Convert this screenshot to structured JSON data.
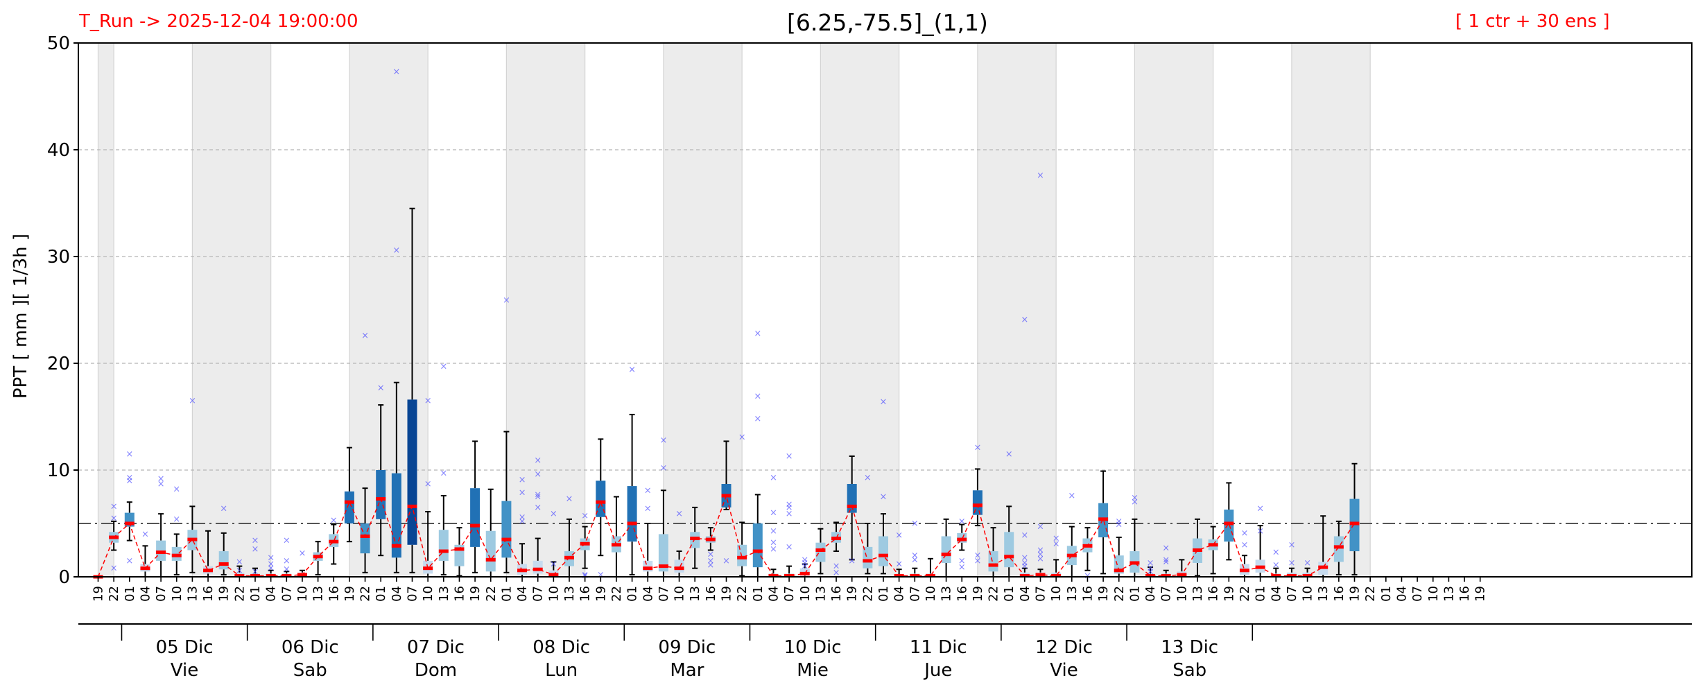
{
  "header": {
    "run_label": "T_Run -> 2025-12-04  19:00:00",
    "title": "[6.25,-75.5]_(1,1)",
    "ensemble_label": "[ 1 ctr + 30 ens ]"
  },
  "colors": {
    "run_label": "#ff0000",
    "median_marker": "#ff0000",
    "median_line": "#ff0000",
    "outliers": "#4d4dff",
    "threshold_line": "#555555",
    "night_shading": "#ececec",
    "box_shades": [
      "#c6dbef",
      "#9ecae1",
      "#4292c6",
      "#2171b5",
      "#084594"
    ]
  },
  "chart_data": {
    "type": "box",
    "ylabel": "PPT  [ mm ][ 1/3h ]",
    "ylim": [
      0,
      50
    ],
    "yticks": [
      "0",
      "10",
      "20",
      "30",
      "40",
      "50"
    ],
    "threshold": 5,
    "grid": "horizontal dashed",
    "hour_labels": [
      "19",
      "22",
      "01",
      "04",
      "07",
      "10",
      "13",
      "16",
      "19",
      "22",
      "01",
      "04",
      "07",
      "10",
      "13",
      "16",
      "19",
      "22",
      "01",
      "04",
      "07",
      "10",
      "13",
      "16",
      "19",
      "22",
      "01",
      "04",
      "07",
      "10",
      "13",
      "16",
      "19",
      "22",
      "01",
      "04",
      "07",
      "10",
      "13",
      "16",
      "19",
      "22",
      "01",
      "04",
      "07",
      "10",
      "13",
      "16",
      "19",
      "22",
      "01",
      "04",
      "07",
      "10",
      "13",
      "16",
      "19",
      "22",
      "01",
      "04",
      "07",
      "10",
      "13",
      "16",
      "19",
      "22",
      "01",
      "04",
      "07",
      "10",
      "13",
      "16",
      "19",
      "22",
      "01",
      "04",
      "07",
      "10",
      "13",
      "16",
      "19",
      "22",
      "01",
      "04",
      "07",
      "10",
      "13",
      "16",
      "19"
    ],
    "days": [
      {
        "date": "05 Dic",
        "weekday": "Vie"
      },
      {
        "date": "06 Dic",
        "weekday": "Sab"
      },
      {
        "date": "07 Dic",
        "weekday": "Dom"
      },
      {
        "date": "08 Dic",
        "weekday": "Lun"
      },
      {
        "date": "09 Dic",
        "weekday": "Mar"
      },
      {
        "date": "10 Dic",
        "weekday": "Mie"
      },
      {
        "date": "11 Dic",
        "weekday": "Jue"
      },
      {
        "date": "12 Dic",
        "weekday": "Vie"
      },
      {
        "date": "13 Dic",
        "weekday": "Sab"
      }
    ],
    "night_spans": [
      [
        0,
        1
      ],
      [
        6,
        11
      ],
      [
        16,
        21
      ],
      [
        26,
        31
      ],
      [
        36,
        41
      ],
      [
        46,
        51
      ],
      [
        56,
        61
      ],
      [
        66,
        71
      ],
      [
        76,
        81
      ]
    ],
    "boxes": [
      {
        "lo": 0,
        "q1": 0,
        "med": 0,
        "q3": 0,
        "hi": 0,
        "out": []
      },
      {
        "lo": 2.5,
        "q1": 3.2,
        "med": 3.7,
        "q3": 4.2,
        "hi": 5.2,
        "out": [
          6.6,
          0.8,
          5.5
        ]
      },
      {
        "lo": 3.4,
        "q1": 4.7,
        "med": 5.0,
        "q3": 6.0,
        "hi": 7.0,
        "out": [
          11.5,
          9.3,
          9.0,
          1.5
        ]
      },
      {
        "lo": 0,
        "q1": 0.5,
        "med": 0.8,
        "q3": 1.2,
        "hi": 2.9,
        "out": [
          4.0
        ]
      },
      {
        "lo": 0,
        "q1": 1.5,
        "med": 2.3,
        "q3": 3.4,
        "hi": 5.9,
        "out": [
          9.2,
          8.7
        ]
      },
      {
        "lo": 0.2,
        "q1": 1.5,
        "med": 2.0,
        "q3": 2.8,
        "hi": 4.0,
        "out": [
          8.2,
          5.4
        ]
      },
      {
        "lo": 0.4,
        "q1": 2.5,
        "med": 3.5,
        "q3": 4.4,
        "hi": 6.6,
        "out": [
          16.5
        ]
      },
      {
        "lo": 0,
        "q1": 0.3,
        "med": 0.6,
        "q3": 1.0,
        "hi": 4.3,
        "out": []
      },
      {
        "lo": 0.2,
        "q1": 0.7,
        "med": 1.2,
        "q3": 2.4,
        "hi": 4.1,
        "out": [
          6.4
        ]
      },
      {
        "lo": 0,
        "q1": 0,
        "med": 0.1,
        "q3": 0.4,
        "hi": 1.0,
        "out": [
          1.4,
          0.6
        ]
      },
      {
        "lo": 0,
        "q1": 0,
        "med": 0.1,
        "q3": 0.3,
        "hi": 0.8,
        "out": [
          3.4,
          2.6,
          0.5
        ]
      },
      {
        "lo": 0,
        "q1": 0,
        "med": 0.1,
        "q3": 0.3,
        "hi": 0.6,
        "out": [
          1.8,
          1.2,
          0.8
        ]
      },
      {
        "lo": 0,
        "q1": 0,
        "med": 0.1,
        "q3": 0.3,
        "hi": 0.5,
        "out": [
          3.4,
          1.5,
          0.7
        ]
      },
      {
        "lo": 0,
        "q1": 0.1,
        "med": 0.2,
        "q3": 0.4,
        "hi": 0.6,
        "out": [
          2.2
        ]
      },
      {
        "lo": 0.2,
        "q1": 1.5,
        "med": 1.9,
        "q3": 2.3,
        "hi": 3.3,
        "out": []
      },
      {
        "lo": 1.2,
        "q1": 2.8,
        "med": 3.3,
        "q3": 4.0,
        "hi": 4.9,
        "out": [
          5.3
        ]
      },
      {
        "lo": 3.3,
        "q1": 5.0,
        "med": 7.0,
        "q3": 8.0,
        "hi": 12.1,
        "out": []
      },
      {
        "lo": 0.4,
        "q1": 2.2,
        "med": 3.8,
        "q3": 5.0,
        "hi": 8.3,
        "out": [
          22.6
        ]
      },
      {
        "lo": 2.0,
        "q1": 5.4,
        "med": 7.3,
        "q3": 10.0,
        "hi": 16.1,
        "out": [
          17.7
        ]
      },
      {
        "lo": 0.4,
        "q1": 1.8,
        "med": 2.9,
        "q3": 9.7,
        "hi": 18.2,
        "out": [
          30.6,
          47.3
        ]
      },
      {
        "lo": 0.4,
        "q1": 3.0,
        "med": 6.6,
        "q3": 16.6,
        "hi": 34.5,
        "out": []
      },
      {
        "lo": 0,
        "q1": 0.3,
        "med": 0.8,
        "q3": 1.5,
        "hi": 6.1,
        "out": [
          16.5,
          8.7
        ]
      },
      {
        "lo": 0.2,
        "q1": 1.5,
        "med": 2.4,
        "q3": 4.4,
        "hi": 7.6,
        "out": [
          19.7,
          9.7
        ]
      },
      {
        "lo": 0.1,
        "q1": 1.0,
        "med": 2.6,
        "q3": 3.0,
        "hi": 4.6,
        "out": []
      },
      {
        "lo": 0.4,
        "q1": 2.8,
        "med": 4.8,
        "q3": 8.3,
        "hi": 12.7,
        "out": []
      },
      {
        "lo": 0,
        "q1": 0.5,
        "med": 1.6,
        "q3": 4.3,
        "hi": 8.2,
        "out": []
      },
      {
        "lo": 0.4,
        "q1": 1.8,
        "med": 3.5,
        "q3": 7.1,
        "hi": 13.6,
        "out": [
          25.9
        ]
      },
      {
        "lo": 0,
        "q1": 0.2,
        "med": 0.6,
        "q3": 1.2,
        "hi": 3.1,
        "out": [
          9.1,
          7.9,
          5.6,
          5.2
        ]
      },
      {
        "lo": 0,
        "q1": 0.3,
        "med": 0.7,
        "q3": 1.5,
        "hi": 3.6,
        "out": [
          10.9,
          9.6,
          7.7,
          7.5,
          6.5
        ]
      },
      {
        "lo": 0,
        "q1": 0.1,
        "med": 0.2,
        "q3": 0.6,
        "hi": 1.4,
        "out": [
          5.9,
          1.2
        ]
      },
      {
        "lo": 0,
        "q1": 1.0,
        "med": 1.8,
        "q3": 2.4,
        "hi": 5.4,
        "out": [
          7.3
        ]
      },
      {
        "lo": 0.8,
        "q1": 2.5,
        "med": 3.1,
        "q3": 3.6,
        "hi": 4.7,
        "out": [
          5.7,
          0.2,
          0.1
        ]
      },
      {
        "lo": 2.0,
        "q1": 5.6,
        "med": 7.0,
        "q3": 9.0,
        "hi": 12.9,
        "out": [
          0.2
        ]
      },
      {
        "lo": 0,
        "q1": 2.3,
        "med": 3.0,
        "q3": 3.8,
        "hi": 7.5,
        "out": []
      },
      {
        "lo": 0.2,
        "q1": 3.3,
        "med": 5.0,
        "q3": 8.5,
        "hi": 15.2,
        "out": [
          19.4
        ]
      },
      {
        "lo": 0,
        "q1": 0.5,
        "med": 0.8,
        "q3": 1.5,
        "hi": 5.0,
        "out": [
          8.1,
          6.4
        ]
      },
      {
        "lo": 0,
        "q1": 0.5,
        "med": 1.0,
        "q3": 4.0,
        "hi": 8.1,
        "out": [
          12.8,
          10.2
        ]
      },
      {
        "lo": 0,
        "q1": 0.4,
        "med": 0.8,
        "q3": 1.6,
        "hi": 2.4,
        "out": [
          5.9
        ]
      },
      {
        "lo": 0.8,
        "q1": 2.7,
        "med": 3.6,
        "q3": 4.2,
        "hi": 6.5,
        "out": []
      },
      {
        "lo": 2.5,
        "q1": 3.2,
        "med": 3.5,
        "q3": 3.8,
        "hi": 4.6,
        "out": [
          1.1,
          1.5,
          2.1
        ]
      },
      {
        "lo": 6.3,
        "q1": 6.5,
        "med": 7.6,
        "q3": 8.7,
        "hi": 12.7,
        "out": [
          1.5
        ]
      },
      {
        "lo": 0.1,
        "q1": 1.0,
        "med": 1.8,
        "q3": 3.0,
        "hi": 5.1,
        "out": [
          13.1
        ]
      },
      {
        "lo": 0,
        "q1": 0.9,
        "med": 2.4,
        "q3": 5.0,
        "hi": 7.7,
        "out": [
          22.8,
          16.9,
          14.8
        ]
      },
      {
        "lo": 0,
        "q1": 0,
        "med": 0.1,
        "q3": 0.3,
        "hi": 0.7,
        "out": [
          9.3,
          6.0,
          4.3,
          3.2,
          2.6
        ]
      },
      {
        "lo": 0,
        "q1": 0,
        "med": 0.1,
        "q3": 0.3,
        "hi": 1.0,
        "out": [
          11.3,
          6.8,
          6.5,
          5.9,
          2.8
        ]
      },
      {
        "lo": 0,
        "q1": 0.1,
        "med": 0.3,
        "q3": 0.8,
        "hi": 1.2,
        "out": [
          1.6,
          1.3,
          1.0
        ]
      },
      {
        "lo": 0.3,
        "q1": 1.4,
        "med": 2.5,
        "q3": 3.2,
        "hi": 4.5,
        "out": []
      },
      {
        "lo": 2.4,
        "q1": 3.2,
        "med": 3.6,
        "q3": 4.2,
        "hi": 5.1,
        "out": [
          1.0,
          0.4
        ]
      },
      {
        "lo": 1.6,
        "q1": 6.0,
        "med": 6.6,
        "q3": 8.7,
        "hi": 11.3,
        "out": [
          1.5
        ]
      },
      {
        "lo": 0.3,
        "q1": 0.8,
        "med": 1.5,
        "q3": 2.8,
        "hi": 5.0,
        "out": [
          9.3
        ]
      },
      {
        "lo": 0.3,
        "q1": 1.0,
        "med": 2.0,
        "q3": 3.8,
        "hi": 5.9,
        "out": [
          16.4,
          7.5
        ]
      },
      {
        "lo": 0,
        "q1": 0,
        "med": 0.1,
        "q3": 0.2,
        "hi": 0.7,
        "out": [
          3.9,
          1.2
        ]
      },
      {
        "lo": 0,
        "q1": 0,
        "med": 0.1,
        "q3": 0.3,
        "hi": 0.8,
        "out": [
          5.0,
          2.0,
          1.6
        ]
      },
      {
        "lo": 0,
        "q1": 0,
        "med": 0.1,
        "q3": 0.3,
        "hi": 1.7,
        "out": []
      },
      {
        "lo": 0,
        "q1": 1.3,
        "med": 2.1,
        "q3": 3.8,
        "hi": 5.4,
        "out": []
      },
      {
        "lo": 2.5,
        "q1": 3.2,
        "med": 3.5,
        "q3": 4.1,
        "hi": 4.9,
        "out": [
          1.5,
          0.9,
          5.2
        ]
      },
      {
        "lo": 4.8,
        "q1": 5.8,
        "med": 6.7,
        "q3": 8.1,
        "hi": 10.1,
        "out": [
          12.1,
          2.0,
          1.5
        ]
      },
      {
        "lo": 0,
        "q1": 0.5,
        "med": 1.1,
        "q3": 2.4,
        "hi": 4.6,
        "out": []
      },
      {
        "lo": 0,
        "q1": 0.9,
        "med": 1.9,
        "q3": 4.2,
        "hi": 6.6,
        "out": [
          11.5
        ]
      },
      {
        "lo": 0,
        "q1": 0,
        "med": 0.1,
        "q3": 0.4,
        "hi": 0.8,
        "out": [
          24.1,
          3.9,
          1.8,
          1.3,
          1.0
        ]
      },
      {
        "lo": 0,
        "q1": 0,
        "med": 0.2,
        "q3": 0.4,
        "hi": 0.7,
        "out": [
          37.6,
          4.7,
          2.5,
          2.1,
          1.7
        ]
      },
      {
        "lo": 0,
        "q1": 0,
        "med": 0.1,
        "q3": 0.4,
        "hi": 1.6,
        "out": [
          3.6,
          3.1
        ]
      },
      {
        "lo": 0,
        "q1": 1.1,
        "med": 2.0,
        "q3": 2.9,
        "hi": 4.7,
        "out": [
          7.6
        ]
      },
      {
        "lo": 0.6,
        "q1": 2.3,
        "med": 2.9,
        "q3": 3.6,
        "hi": 4.6,
        "out": [
          0.1
        ]
      },
      {
        "lo": 0.3,
        "q1": 3.7,
        "med": 5.4,
        "q3": 6.9,
        "hi": 9.9,
        "out": []
      },
      {
        "lo": 0,
        "q1": 0.3,
        "med": 0.6,
        "q3": 2.0,
        "hi": 3.7,
        "out": [
          5.2,
          4.9
        ]
      },
      {
        "lo": 0,
        "q1": 0.4,
        "med": 1.3,
        "q3": 2.4,
        "hi": 5.4,
        "out": [
          7.4,
          7.0
        ]
      },
      {
        "lo": 0,
        "q1": 0,
        "med": 0.1,
        "q3": 0.3,
        "hi": 0.9,
        "out": [
          1.3,
          0.8,
          0.5
        ]
      },
      {
        "lo": 0,
        "q1": 0,
        "med": 0.1,
        "q3": 0.3,
        "hi": 0.6,
        "out": [
          2.7,
          1.6,
          1.4
        ]
      },
      {
        "lo": 0,
        "q1": 0,
        "med": 0.2,
        "q3": 0.5,
        "hi": 1.6,
        "out": []
      },
      {
        "lo": 0.1,
        "q1": 1.3,
        "med": 2.5,
        "q3": 3.6,
        "hi": 5.4,
        "out": []
      },
      {
        "lo": 0.3,
        "q1": 2.5,
        "med": 3.0,
        "q3": 3.5,
        "hi": 4.7,
        "out": []
      },
      {
        "lo": 1.6,
        "q1": 3.3,
        "med": 5.0,
        "q3": 6.3,
        "hi": 8.8,
        "out": []
      },
      {
        "lo": 0,
        "q1": 0.2,
        "med": 0.6,
        "q3": 1.2,
        "hi": 2.0,
        "out": [
          4.1,
          3.0
        ]
      },
      {
        "lo": 0,
        "q1": 0.4,
        "med": 0.9,
        "q3": 1.6,
        "hi": 4.8,
        "out": [
          6.4,
          4.3
        ]
      },
      {
        "lo": 0,
        "q1": 0,
        "med": 0.1,
        "q3": 0.3,
        "hi": 0.8,
        "out": [
          2.3,
          1.1
        ]
      },
      {
        "lo": 0,
        "q1": 0,
        "med": 0.1,
        "q3": 0.4,
        "hi": 0.8,
        "out": [
          3.0,
          1.3
        ]
      },
      {
        "lo": 0,
        "q1": 0,
        "med": 0.1,
        "q3": 0.4,
        "hi": 0.8,
        "out": [
          1.3
        ]
      },
      {
        "lo": 0,
        "q1": 0.2,
        "med": 0.9,
        "q3": 1.4,
        "hi": 5.7,
        "out": []
      },
      {
        "lo": 0.2,
        "q1": 1.4,
        "med": 2.8,
        "q3": 3.8,
        "hi": 5.2,
        "out": []
      },
      {
        "lo": 0.2,
        "q1": 2.4,
        "med": 5.0,
        "q3": 7.3,
        "hi": 10.6,
        "out": []
      }
    ]
  }
}
